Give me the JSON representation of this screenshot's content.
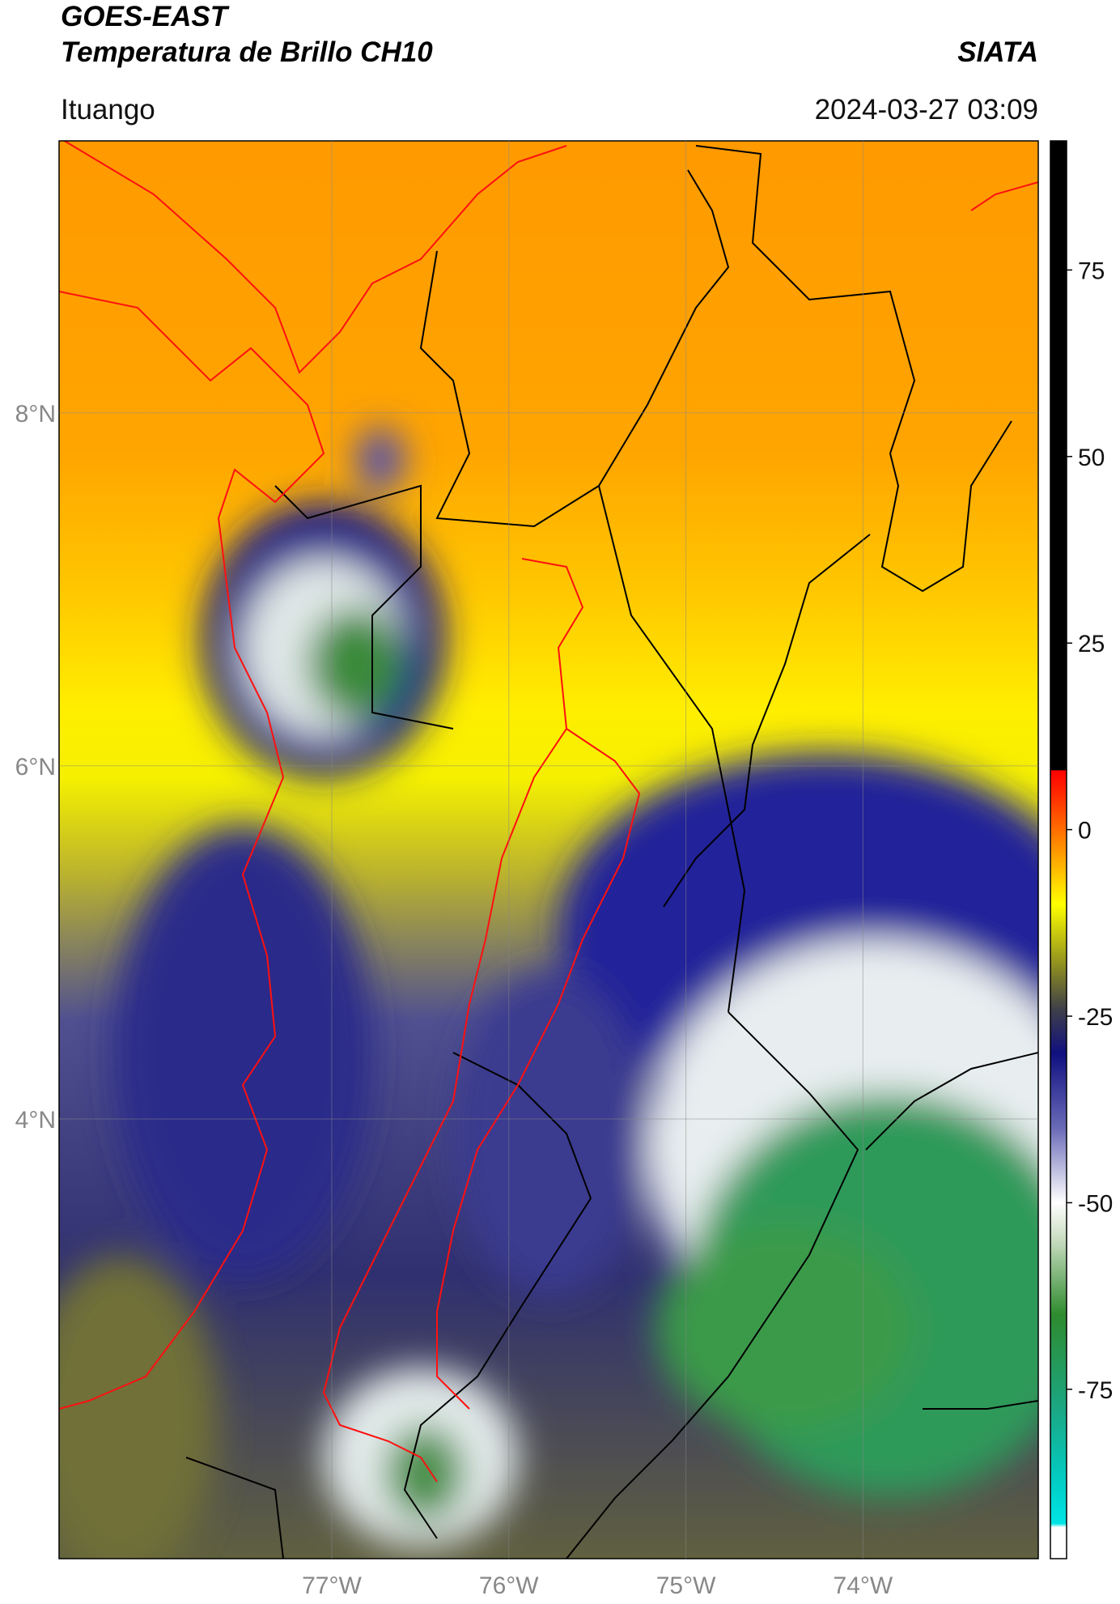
{
  "header": {
    "title": "GOES-EAST",
    "subtitle": "Temperatura de Brillo CH10",
    "source": "SIATA",
    "location": "Ituango",
    "datetime": "2024-03-27 03:09"
  },
  "map": {
    "xlim": [
      -78.54,
      -73.01
    ],
    "ylim": [
      1.51,
      9.54
    ],
    "xticks": [
      {
        "value": -77,
        "label": "77°W"
      },
      {
        "value": -76,
        "label": "76°W"
      },
      {
        "value": -75,
        "label": "75°W"
      },
      {
        "value": -74,
        "label": "74°W"
      }
    ],
    "yticks": [
      {
        "value": 4,
        "label": "4°N"
      },
      {
        "value": 6,
        "label": "6°N"
      },
      {
        "value": 8,
        "label": "8°N"
      }
    ],
    "grid": true
  },
  "colorbar": {
    "lim": [
      -97.7,
      92.3
    ],
    "ticks": [
      -75,
      -50,
      -25,
      0,
      25,
      50,
      75
    ],
    "stops": [
      {
        "value": -97.7,
        "color": "#ffffff"
      },
      {
        "value": -93.5,
        "color": "#ffffff"
      },
      {
        "value": -93,
        "color": "#00e5e5"
      },
      {
        "value": -88,
        "color": "#00d0c8"
      },
      {
        "value": -78,
        "color": "#1aa886"
      },
      {
        "value": -65,
        "color": "#2e8b2e"
      },
      {
        "value": -55,
        "color": "#c8dcc0"
      },
      {
        "value": -50,
        "color": "#ffffff"
      },
      {
        "value": -40,
        "color": "#6a6ab8"
      },
      {
        "value": -30,
        "color": "#101080"
      },
      {
        "value": -24,
        "color": "#404048"
      },
      {
        "value": -18,
        "color": "#909020"
      },
      {
        "value": -10,
        "color": "#ffff00"
      },
      {
        "value": -3,
        "color": "#ff9900"
      },
      {
        "value": 4,
        "color": "#ff3300"
      },
      {
        "value": 7.9,
        "color": "#ff0000"
      },
      {
        "value": 8,
        "color": "#000000"
      },
      {
        "value": 92.3,
        "color": "#000000"
      }
    ]
  }
}
